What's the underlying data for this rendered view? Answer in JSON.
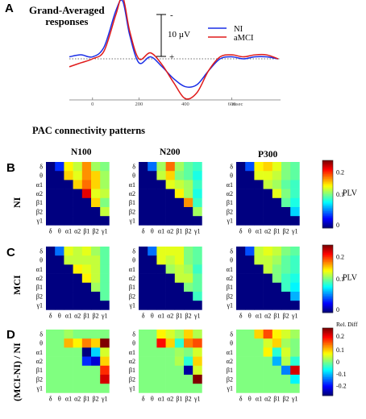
{
  "panelA": {
    "letter": "A",
    "title_line1": "Grand-Averaged",
    "title_line2": "responses",
    "scale_label": "10 µV",
    "minus_sign": "-",
    "plus_sign": "+",
    "x_ticks": [
      "0",
      "200",
      "400",
      "600"
    ],
    "x_unit": "msec",
    "legend": [
      {
        "name": "NI",
        "color": "#1a2ee6"
      },
      {
        "name": "aMCI",
        "color": "#e01a1a"
      }
    ]
  },
  "pac": {
    "title": "PAC connectivity patterns",
    "columns": [
      "N100",
      "N200",
      "P300"
    ],
    "bands": [
      "δ",
      "θ",
      "α1",
      "α2",
      "β1",
      "β2",
      "γ1"
    ],
    "rows": [
      {
        "letter": "B",
        "label": "NI",
        "colorbar_title": "PLV",
        "ticks": [
          "0.2",
          "0.1",
          "0"
        ]
      },
      {
        "letter": "C",
        "label": "MCI",
        "colorbar_title": "PLV",
        "ticks": [
          "0.2",
          "0.1",
          "0"
        ]
      },
      {
        "letter": "D",
        "label": "(MCI-NI) / NI",
        "colorbar_title": "Rel. Diff",
        "ticks": [
          "0.2",
          "0.1",
          "0",
          "-0.1",
          "-0.2"
        ]
      }
    ]
  },
  "chart_data": [
    {
      "type": "line",
      "title": "Grand-Averaged responses",
      "xlabel": "msec",
      "x": [
        -100,
        -50,
        0,
        50,
        100,
        130,
        160,
        200,
        250,
        300,
        350,
        400,
        450,
        500,
        550,
        600,
        650,
        700,
        750,
        800
      ],
      "series": [
        {
          "name": "NI",
          "color": "#1a2ee6",
          "values": [
            0.5,
            1.0,
            0.5,
            3.0,
            12.0,
            14.5,
            6.0,
            -1.0,
            0.5,
            -2.0,
            -5.0,
            -7.0,
            -6.5,
            -3.0,
            0.0,
            0.5,
            0.0,
            0.5,
            0.5,
            0.0
          ]
        },
        {
          "name": "aMCI",
          "color": "#e01a1a",
          "values": [
            -2.0,
            -1.0,
            0.0,
            2.0,
            11.0,
            15.5,
            7.0,
            0.0,
            1.5,
            -1.5,
            -6.0,
            -10.0,
            -8.5,
            -3.0,
            0.5,
            1.0,
            0.5,
            1.0,
            1.0,
            0.0
          ]
        }
      ]
    },
    {
      "type": "heatmap",
      "title": "N100 NI",
      "x": [
        "δ",
        "θ",
        "α1",
        "α2",
        "β1",
        "β2",
        "γ1"
      ],
      "y": [
        "δ",
        "θ",
        "α1",
        "α2",
        "β1",
        "β2",
        "γ1"
      ],
      "values": [
        [
          0,
          0.05,
          0.19,
          0.17,
          0.22,
          0.16,
          0.15
        ],
        [
          0,
          0,
          0.2,
          0.18,
          0.22,
          0.2,
          0.16
        ],
        [
          0,
          0,
          0,
          0.2,
          0.23,
          0.2,
          0.16
        ],
        [
          0,
          0,
          0,
          0,
          0.27,
          0.18,
          0.17
        ],
        [
          0,
          0,
          0,
          0,
          0,
          0.2,
          0.15
        ],
        [
          0,
          0,
          0,
          0,
          0,
          0,
          0.17
        ],
        [
          0,
          0,
          0,
          0,
          0,
          0,
          0
        ]
      ]
    },
    {
      "type": "heatmap",
      "title": "N200 NI",
      "x": [
        "δ",
        "θ",
        "α1",
        "α2",
        "β1",
        "β2",
        "γ1"
      ],
      "y": [
        "δ",
        "θ",
        "α1",
        "α2",
        "β1",
        "β2",
        "γ1"
      ],
      "values": [
        [
          0,
          0.07,
          0.16,
          0.23,
          0.16,
          0.14,
          0.13
        ],
        [
          0,
          0,
          0.17,
          0.2,
          0.15,
          0.14,
          0.12
        ],
        [
          0,
          0,
          0,
          0.18,
          0.17,
          0.16,
          0.13
        ],
        [
          0,
          0,
          0,
          0,
          0.19,
          0.16,
          0.12
        ],
        [
          0,
          0,
          0,
          0,
          0,
          0.22,
          0.13
        ],
        [
          0,
          0,
          0,
          0,
          0,
          0,
          0.16
        ],
        [
          0,
          0,
          0,
          0,
          0,
          0,
          0
        ]
      ]
    },
    {
      "type": "heatmap",
      "title": "P300 NI",
      "x": [
        "δ",
        "θ",
        "α1",
        "α2",
        "β1",
        "β2",
        "γ1"
      ],
      "y": [
        "δ",
        "θ",
        "α1",
        "α2",
        "β1",
        "β2",
        "γ1"
      ],
      "values": [
        [
          0,
          0.06,
          0.19,
          0.2,
          0.18,
          0.15,
          0.14
        ],
        [
          0,
          0,
          0.18,
          0.18,
          0.17,
          0.15,
          0.14
        ],
        [
          0,
          0,
          0,
          0.17,
          0.16,
          0.14,
          0.13
        ],
        [
          0,
          0,
          0,
          0,
          0.18,
          0.15,
          0.13
        ],
        [
          0,
          0,
          0,
          0,
          0,
          0.14,
          0.12
        ],
        [
          0,
          0,
          0,
          0,
          0,
          0,
          0.1
        ],
        [
          0,
          0,
          0,
          0,
          0,
          0,
          0
        ]
      ]
    },
    {
      "type": "heatmap",
      "title": "N100 MCI",
      "x": [
        "δ",
        "θ",
        "α1",
        "α2",
        "β1",
        "β2",
        "γ1"
      ],
      "y": [
        "δ",
        "θ",
        "α1",
        "α2",
        "β1",
        "β2",
        "γ1"
      ],
      "values": [
        [
          0,
          0.07,
          0.18,
          0.17,
          0.18,
          0.16,
          0.14
        ],
        [
          0,
          0,
          0.17,
          0.17,
          0.17,
          0.17,
          0.14
        ],
        [
          0,
          0,
          0,
          0.19,
          0.18,
          0.17,
          0.14
        ],
        [
          0,
          0,
          0,
          0,
          0.19,
          0.17,
          0.14
        ],
        [
          0,
          0,
          0,
          0,
          0,
          0.16,
          0.14
        ],
        [
          0,
          0,
          0,
          0,
          0,
          0,
          0.14
        ],
        [
          0,
          0,
          0,
          0,
          0,
          0,
          0
        ]
      ]
    },
    {
      "type": "heatmap",
      "title": "N200 MCI",
      "x": [
        "δ",
        "θ",
        "α1",
        "α2",
        "β1",
        "β2",
        "γ1"
      ],
      "y": [
        "δ",
        "θ",
        "α1",
        "α2",
        "β1",
        "β2",
        "γ1"
      ],
      "values": [
        [
          0,
          0.07,
          0.18,
          0.18,
          0.18,
          0.15,
          0.14
        ],
        [
          0,
          0,
          0.18,
          0.17,
          0.18,
          0.15,
          0.14
        ],
        [
          0,
          0,
          0,
          0.16,
          0.17,
          0.16,
          0.13
        ],
        [
          0,
          0,
          0,
          0,
          0.17,
          0.17,
          0.14
        ],
        [
          0,
          0,
          0,
          0,
          0,
          0.15,
          0.14
        ],
        [
          0,
          0,
          0,
          0,
          0,
          0,
          0.13
        ],
        [
          0,
          0,
          0,
          0,
          0,
          0,
          0
        ]
      ]
    },
    {
      "type": "heatmap",
      "title": "P300 MCI",
      "x": [
        "δ",
        "θ",
        "α1",
        "α2",
        "β1",
        "β2",
        "γ1"
      ],
      "y": [
        "δ",
        "θ",
        "α1",
        "α2",
        "β1",
        "β2",
        "γ1"
      ],
      "values": [
        [
          0,
          0.06,
          0.17,
          0.18,
          0.17,
          0.15,
          0.14
        ],
        [
          0,
          0,
          0.17,
          0.17,
          0.16,
          0.14,
          0.13
        ],
        [
          0,
          0,
          0,
          0.17,
          0.15,
          0.14,
          0.13
        ],
        [
          0,
          0,
          0,
          0,
          0.15,
          0.13,
          0.12
        ],
        [
          0,
          0,
          0,
          0,
          0,
          0.13,
          0.11
        ],
        [
          0,
          0,
          0,
          0,
          0,
          0,
          0.09
        ],
        [
          0,
          0,
          0,
          0,
          0,
          0,
          0
        ]
      ]
    },
    {
      "type": "heatmap",
      "title": "N100 (MCI-NI) / NI",
      "x": [
        "δ",
        "θ",
        "α1",
        "α2",
        "β1",
        "β2",
        "γ1"
      ],
      "y": [
        "δ",
        "θ",
        "α1",
        "α2",
        "β1",
        "β2",
        "γ1"
      ],
      "values": [
        [
          0,
          0,
          0.02,
          0,
          0,
          0,
          0
        ],
        [
          0,
          0,
          0.12,
          0.08,
          0.15,
          0.1,
          0.3
        ],
        [
          0,
          0,
          0,
          0,
          -0.3,
          -0.1,
          0.05
        ],
        [
          0,
          0,
          0,
          0,
          -0.2,
          -0.25,
          0.1
        ],
        [
          0,
          0,
          0,
          0,
          0,
          0,
          0.2
        ],
        [
          0,
          0,
          0,
          0,
          0,
          0,
          0.25
        ],
        [
          0,
          0,
          0,
          0,
          0,
          0,
          0
        ]
      ]
    },
    {
      "type": "heatmap",
      "title": "N200 (MCI-NI) / NI",
      "x": [
        "δ",
        "θ",
        "α1",
        "α2",
        "β1",
        "β2",
        "γ1"
      ],
      "y": [
        "δ",
        "θ",
        "α1",
        "α2",
        "β1",
        "β2",
        "γ1"
      ],
      "values": [
        [
          0,
          0,
          0.08,
          0.05,
          0.02,
          0.1,
          0.03
        ],
        [
          0,
          0,
          0.22,
          0.1,
          -0.05,
          0.15,
          0.18
        ],
        [
          0,
          0,
          0,
          0,
          0.02,
          0,
          0.05
        ],
        [
          0,
          0,
          0,
          0,
          0.03,
          -0.05,
          0.1
        ],
        [
          0,
          0,
          0,
          0,
          0,
          -0.28,
          0.05
        ],
        [
          0,
          0,
          0,
          0,
          0,
          0,
          0.3
        ],
        [
          0,
          0,
          0,
          0,
          0,
          0,
          0
        ]
      ]
    },
    {
      "type": "heatmap",
      "title": "P300 (MCI-NI) / NI",
      "x": [
        "δ",
        "θ",
        "α1",
        "α2",
        "β1",
        "β2",
        "γ1"
      ],
      "y": [
        "δ",
        "θ",
        "α1",
        "α2",
        "β1",
        "β2",
        "γ1"
      ],
      "values": [
        [
          0,
          0,
          0.1,
          0.18,
          0.08,
          0.05,
          0.02
        ],
        [
          0,
          0,
          0,
          0.05,
          0.1,
          0.02,
          0
        ],
        [
          0,
          0,
          0,
          0.08,
          -0.05,
          0.05,
          0
        ],
        [
          0,
          0,
          0,
          0,
          -0.12,
          0.03,
          -0.05
        ],
        [
          0,
          0,
          0,
          0,
          0,
          -0.15,
          0.25
        ],
        [
          0,
          0,
          0,
          0,
          0,
          0,
          -0.08
        ],
        [
          0,
          0,
          0,
          0,
          0,
          0,
          0
        ]
      ]
    }
  ]
}
